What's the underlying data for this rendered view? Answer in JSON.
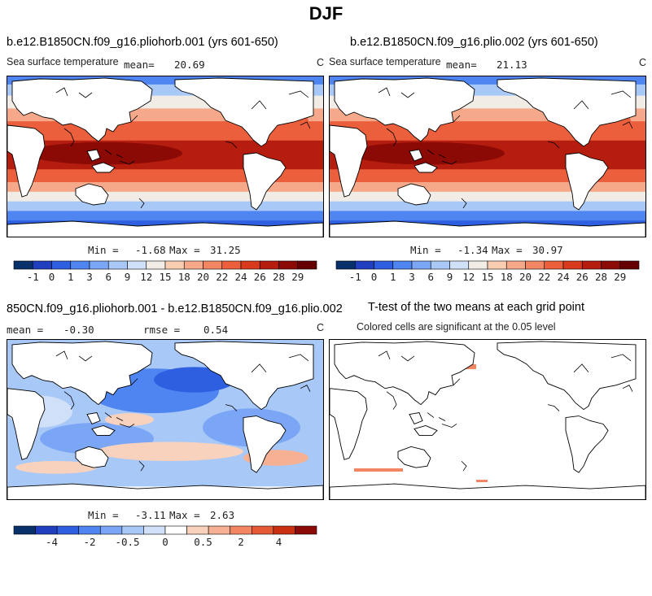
{
  "figure": {
    "title": "DJF"
  },
  "chart_data": [
    {
      "type": "heatmap",
      "title": "b.e12.B1850CN.f09_g16.pliohorb.001 (yrs 601-650)",
      "subtitle_left": "Sea surface temperature",
      "units": "C",
      "mean_label": "mean=",
      "mean": "20.69",
      "min_label": "Min =",
      "min": "-1.68",
      "max_label": "Max =",
      "max": "31.25",
      "colorbar_ticks": [
        "-1",
        "0",
        "1",
        "3",
        "6",
        "9",
        "12",
        "15",
        "18",
        "20",
        "22",
        "24",
        "26",
        "28",
        "29"
      ]
    },
    {
      "type": "heatmap",
      "title": "b.e12.B1850CN.f09_g16.plio.002 (yrs 601-650)",
      "subtitle_left": "Sea surface temperature",
      "units": "C",
      "mean_label": "mean=",
      "mean": "21.13",
      "min_label": "Min =",
      "min": "-1.34",
      "max_label": "Max =",
      "max": "30.97",
      "colorbar_ticks": [
        "-1",
        "0",
        "1",
        "3",
        "6",
        "9",
        "12",
        "15",
        "18",
        "20",
        "22",
        "24",
        "26",
        "28",
        "29"
      ]
    },
    {
      "type": "heatmap",
      "title": "850CN.f09_g16.pliohorb.001 - b.e12.B1850CN.f09_g16.plio.002",
      "units": "C",
      "mean_label": "mean =",
      "mean": "-0.30",
      "rmse_label": "rmse =",
      "rmse": "0.54",
      "min_label": "Min =",
      "min": "-3.11",
      "max_label": "Max =",
      "max": "2.63",
      "colorbar_ticks": [
        "-4",
        "-2",
        "-0.5",
        "0",
        "0.5",
        "2",
        "4"
      ]
    },
    {
      "type": "heatmap",
      "title": "T-test of the two means at each grid point",
      "subtitle": "Colored cells are significant at the 0.05 level"
    }
  ],
  "colors": {
    "sst_scale": [
      "#08306b",
      "#1f3fbf",
      "#2e5fe0",
      "#4f85f0",
      "#7aa6f5",
      "#a8c8f7",
      "#cfe0f8",
      "#f1ede6",
      "#f9cdb2",
      "#f6a98a",
      "#f28662",
      "#ec5f3c",
      "#d9391c",
      "#b51d0f",
      "#8c0a06",
      "#650000"
    ],
    "diff_scale": [
      "#08306b",
      "#1f3fbf",
      "#2e5fe0",
      "#4f85f0",
      "#7aa6f5",
      "#a8c8f7",
      "#cfe0f8",
      "#ffffff",
      "#f9d2bd",
      "#f6b094",
      "#f28662",
      "#e45a35",
      "#c9300f",
      "#8c0a06"
    ],
    "significant": "#f28662"
  }
}
